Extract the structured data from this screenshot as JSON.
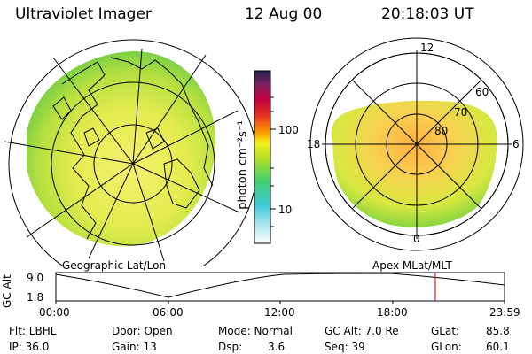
{
  "header": {
    "instrument": "Ultraviolet Imager",
    "date": "12 Aug 00",
    "time": "20:18:03 UT"
  },
  "colorbar": {
    "unit_label": "photon cm⁻²s⁻¹",
    "tick_100": "100",
    "tick_10": "10"
  },
  "geo_panel": {
    "label": "Geographic Lat/Lon"
  },
  "apex_panel": {
    "label": "Apex MLat/MLT",
    "mlt_12": "12",
    "mlt_18": "18",
    "mlt_6": "6",
    "mlt_0": "0",
    "lat_60": "60",
    "lat_70": "70",
    "lat_80": "80"
  },
  "altitude_plot": {
    "ylabel": "GC Alt",
    "ytick_high": "9.0",
    "ytick_low": "1.8",
    "xticks": [
      "00:00",
      "06:00",
      "12:00",
      "18:00",
      "23:59"
    ],
    "marker_color": "#cc2222"
  },
  "info": {
    "flt": "Flt: LBHL",
    "ip": "IP: 36.0",
    "door": "Door: Open",
    "gain": "Gain: 13",
    "mode": "Mode: Normal",
    "dsp_label": "Dsp:",
    "dsp_value": "3.6",
    "gc_alt": "GC Alt: 7.0 Re",
    "seq": "Seq: 39",
    "glat_label": "GLat:",
    "glat_value": "85.8",
    "glon_label": "GLon:",
    "glon_value": "60.1"
  }
}
